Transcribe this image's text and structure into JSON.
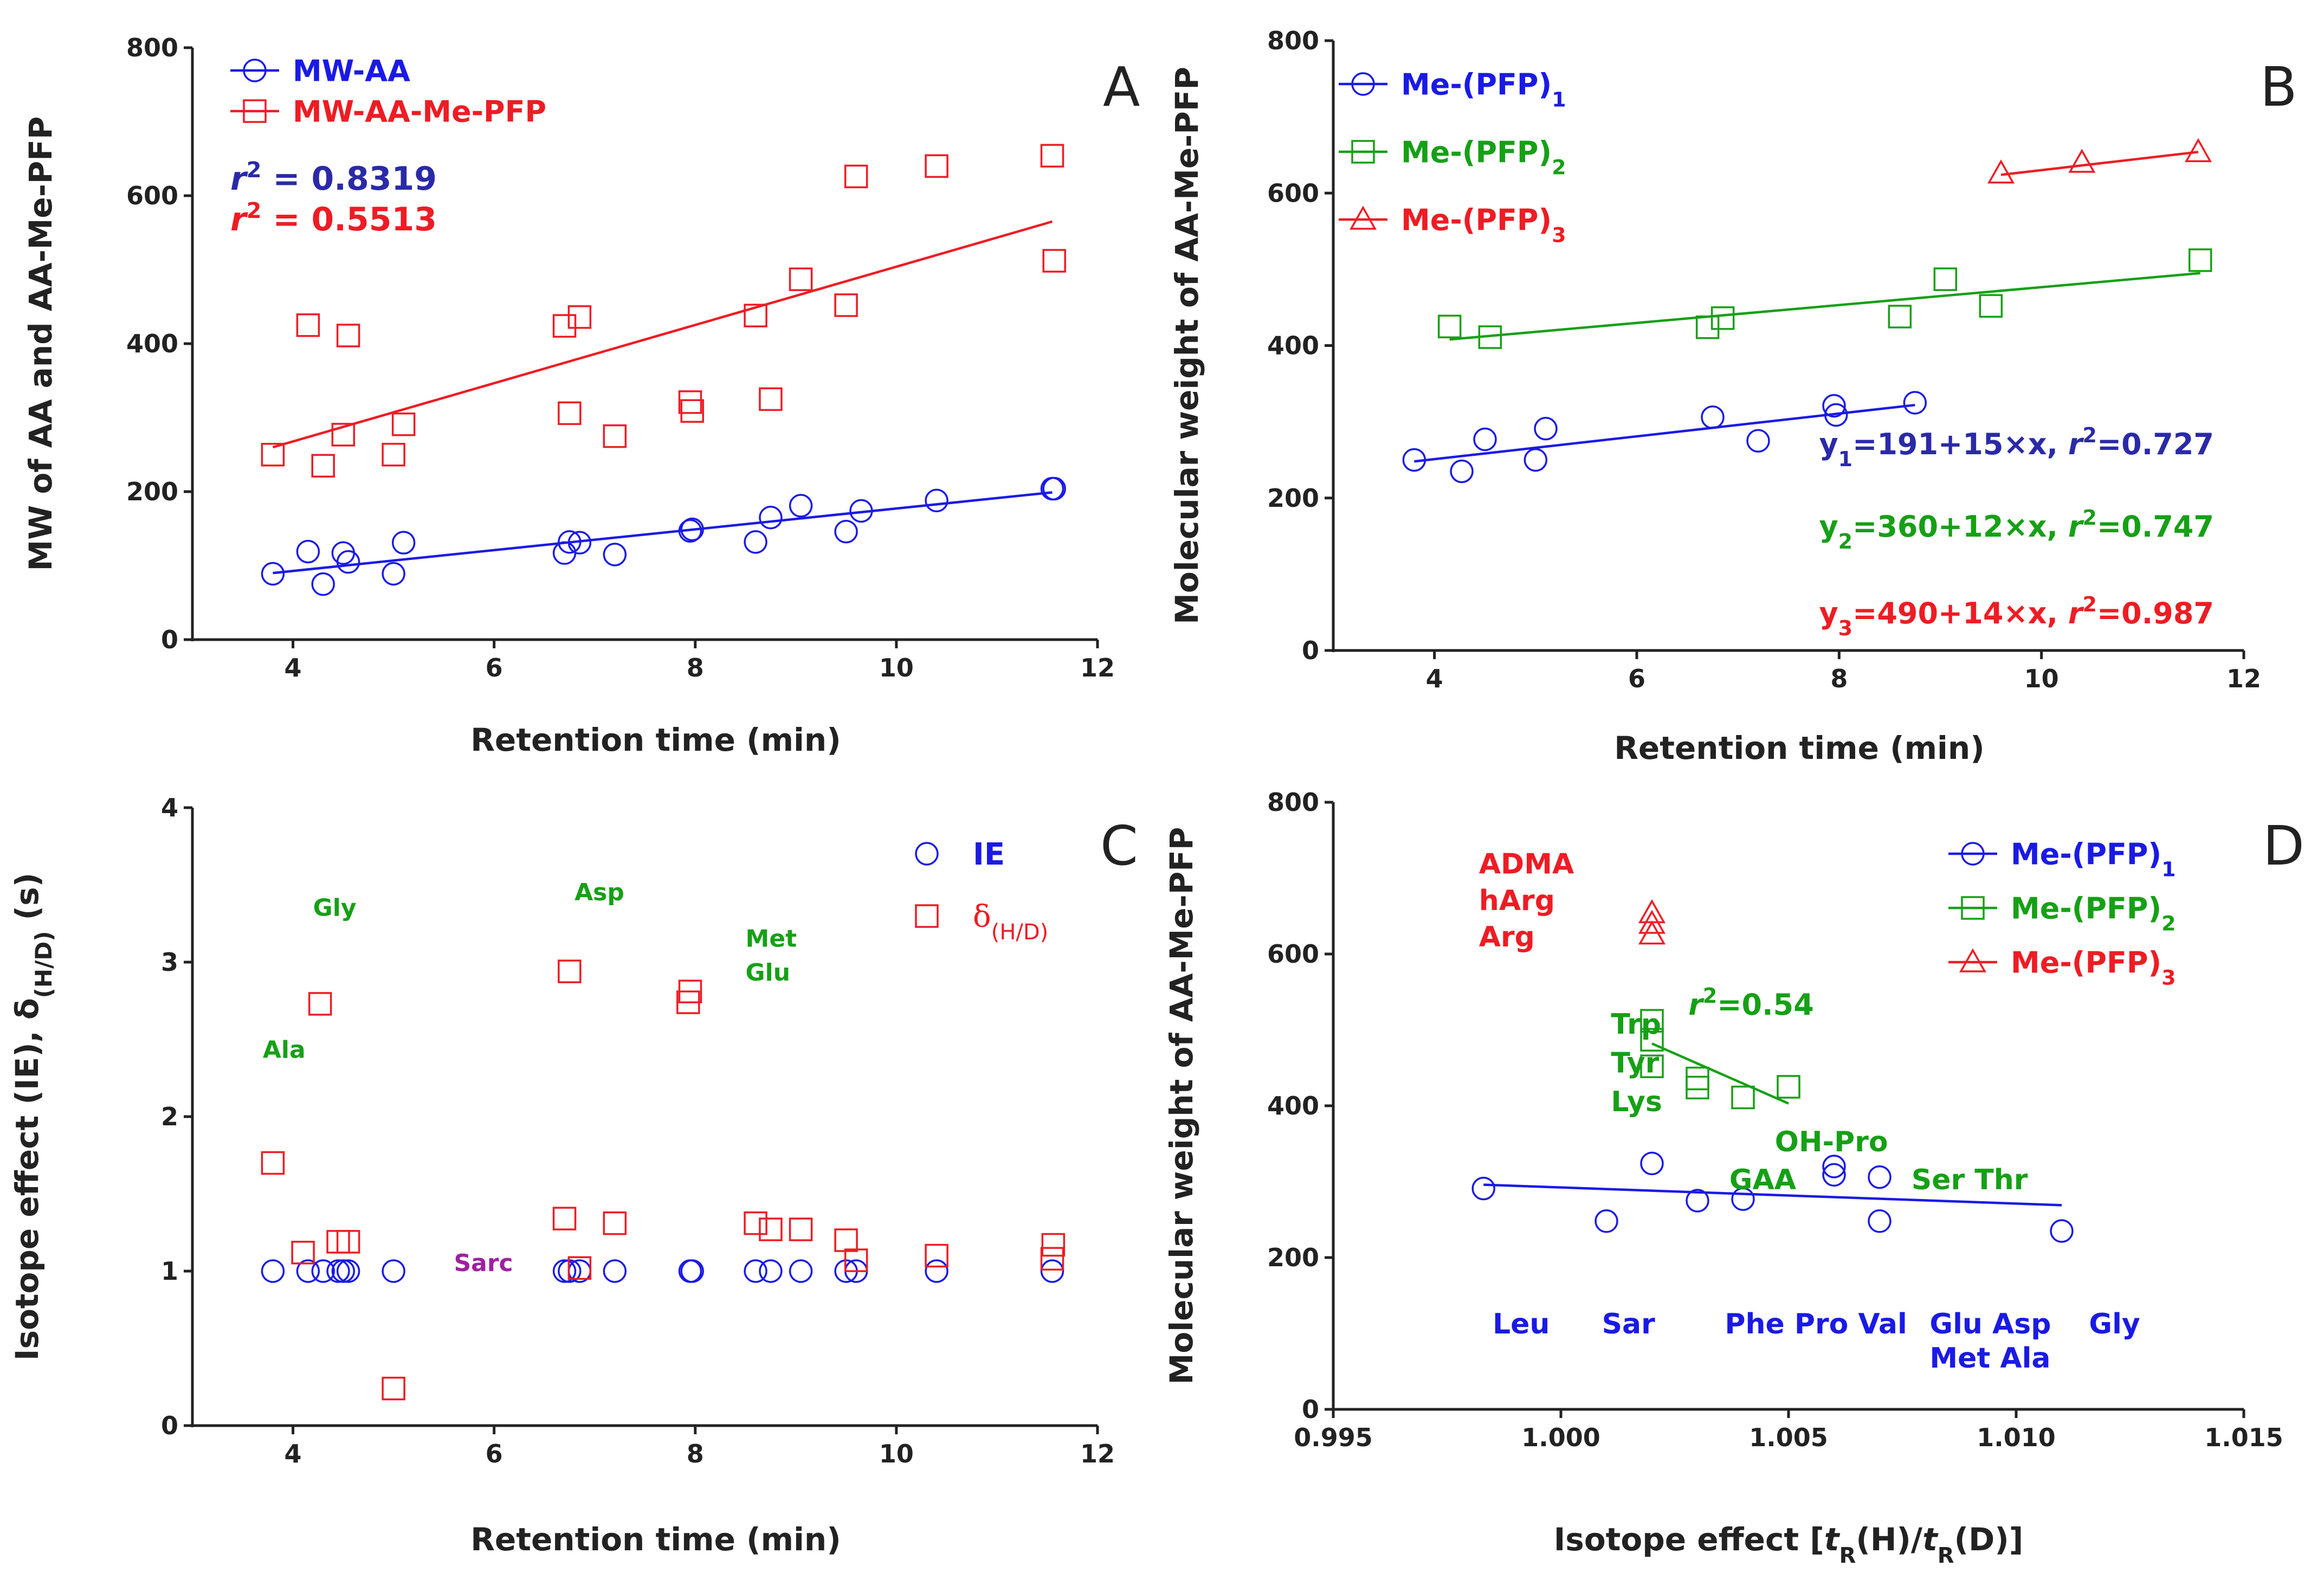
{
  "colors": {
    "blue": "#1a1ae6",
    "red": "#ee1c24",
    "green": "#16a016",
    "purple": "#a020a0",
    "navy": "#2a2aa8",
    "dark": "#222222"
  },
  "chart_data": [
    {
      "panel": "A",
      "type": "scatter",
      "xlabel": "Retention time (min)",
      "ylabel": "MW of AA and AA-Me-PFP",
      "xlim": [
        3,
        12
      ],
      "ylim": [
        0,
        800
      ],
      "xticks": [
        4,
        6,
        8,
        10,
        12
      ],
      "yticks": [
        0,
        200,
        400,
        600,
        800
      ],
      "series": [
        {
          "name": "MW-AA",
          "marker": "circle",
          "color": "#1a1ae6",
          "points": [
            [
              3.8,
              89
            ],
            [
              4.15,
              119
            ],
            [
              4.3,
              75
            ],
            [
              4.5,
              117
            ],
            [
              4.55,
              105
            ],
            [
              5.0,
              89
            ],
            [
              5.1,
              131
            ],
            [
              6.7,
              117
            ],
            [
              6.75,
              132
            ],
            [
              6.85,
              131
            ],
            [
              7.2,
              115
            ],
            [
              7.95,
              147
            ],
            [
              7.97,
              149
            ],
            [
              8.6,
              132
            ],
            [
              8.75,
              165
            ],
            [
              9.05,
              181
            ],
            [
              9.5,
              146
            ],
            [
              9.65,
              174
            ],
            [
              10.4,
              188
            ],
            [
              11.55,
              204
            ],
            [
              11.57,
              204
            ]
          ],
          "fit": [
            [
              3.8,
              90
            ],
            [
              11.55,
              199
            ]
          ]
        },
        {
          "name": "MW-AA-Me-PFP",
          "marker": "square",
          "color": "#ee1c24",
          "points": [
            [
              3.8,
              250
            ],
            [
              4.15,
              425
            ],
            [
              4.3,
              235
            ],
            [
              4.5,
              277
            ],
            [
              4.55,
              411
            ],
            [
              5.0,
              250
            ],
            [
              5.1,
              291
            ],
            [
              6.7,
              424
            ],
            [
              6.75,
              306
            ],
            [
              6.85,
              436
            ],
            [
              7.2,
              275
            ],
            [
              7.95,
              321
            ],
            [
              7.97,
              309
            ],
            [
              8.6,
              438
            ],
            [
              8.75,
              325
            ],
            [
              9.05,
              487
            ],
            [
              9.5,
              452
            ],
            [
              9.6,
              626
            ],
            [
              10.4,
              640
            ],
            [
              11.55,
              654
            ],
            [
              11.57,
              512
            ]
          ],
          "fit": [
            [
              3.8,
              260
            ],
            [
              11.55,
              565
            ]
          ]
        }
      ],
      "annotations": [
        {
          "pre": "r",
          "sup": "2",
          "text": " = 0.8319",
          "color": "#2a2aa8"
        },
        {
          "pre": "r",
          "sup": "2",
          "text": " = 0.5513",
          "color": "#ee1c24"
        }
      ]
    },
    {
      "panel": "B",
      "type": "scatter",
      "xlabel": "Retention time (min)",
      "ylabel": "Molecular weight of AA-Me-PFP",
      "xlim": [
        3,
        12
      ],
      "ylim": [
        0,
        800
      ],
      "xticks": [
        4,
        6,
        8,
        10,
        12
      ],
      "yticks": [
        0,
        200,
        400,
        600,
        800
      ],
      "series": [
        {
          "name": "Me-(PFP)",
          "sub": "1",
          "marker": "circle",
          "color": "#1a1ae6",
          "points": [
            [
              3.8,
              250
            ],
            [
              4.27,
              235
            ],
            [
              4.5,
              277
            ],
            [
              5.0,
              250
            ],
            [
              5.1,
              291
            ],
            [
              6.75,
              306
            ],
            [
              7.2,
              275
            ],
            [
              7.95,
              321
            ],
            [
              7.97,
              309
            ],
            [
              8.75,
              325
            ]
          ],
          "fit": [
            [
              3.8,
              248
            ],
            [
              8.75,
              322
            ]
          ]
        },
        {
          "name": "Me-(PFP)",
          "sub": "2",
          "marker": "square",
          "color": "#16a016",
          "points": [
            [
              4.15,
              425
            ],
            [
              4.55,
              411
            ],
            [
              6.7,
              424
            ],
            [
              6.85,
              436
            ],
            [
              8.6,
              438
            ],
            [
              9.05,
              487
            ],
            [
              9.5,
              452
            ],
            [
              11.57,
              512
            ]
          ],
          "fit": [
            [
              4.15,
              408
            ],
            [
              11.57,
              495
            ]
          ]
        },
        {
          "name": "Me-(PFP)",
          "sub": "3",
          "marker": "triangle",
          "color": "#ee1c24",
          "points": [
            [
              9.6,
              626
            ],
            [
              10.4,
              640
            ],
            [
              11.55,
              654
            ]
          ],
          "fit": [
            [
              9.6,
              624
            ],
            [
              11.55,
              654
            ]
          ]
        }
      ],
      "equations": [
        {
          "pre": "y",
          "sub": "1",
          "mid": "=191+15×x, ",
          "r": "r",
          "sup": "2",
          "post": "=0.727",
          "color": "#2a2aa8"
        },
        {
          "pre": "y",
          "sub": "2",
          "mid": "=360+12×x, ",
          "r": "r",
          "sup": "2",
          "post": "=0.747",
          "color": "#16a016"
        },
        {
          "pre": "y",
          "sub": "3",
          "mid": "=490+14×x, ",
          "r": "r",
          "sup": "2",
          "post": "=0.987",
          "color": "#ee1c24"
        }
      ]
    },
    {
      "panel": "C",
      "type": "scatter",
      "xlabel": "Retention time (min)",
      "ylabel_main": "Isotope effect (IE), δ",
      "ylabel_sub": "(H/D)",
      "ylabel_end": " (s)",
      "xlim": [
        3,
        12
      ],
      "ylim": [
        0,
        4
      ],
      "xticks": [
        4,
        6,
        8,
        10,
        12
      ],
      "yticks": [
        0,
        1,
        2,
        3,
        4
      ],
      "series": [
        {
          "name": "IE",
          "marker": "circle",
          "color": "#1a1ae6",
          "points": [
            [
              3.8,
              1
            ],
            [
              4.15,
              1
            ],
            [
              4.3,
              1
            ],
            [
              4.45,
              1
            ],
            [
              4.5,
              1
            ],
            [
              4.55,
              1
            ],
            [
              5.0,
              1
            ],
            [
              6.7,
              1
            ],
            [
              6.75,
              1
            ],
            [
              6.85,
              1
            ],
            [
              7.2,
              1
            ],
            [
              7.95,
              1
            ],
            [
              7.97,
              1
            ],
            [
              8.6,
              1
            ],
            [
              8.75,
              1
            ],
            [
              9.05,
              1
            ],
            [
              9.5,
              1
            ],
            [
              9.6,
              1
            ],
            [
              10.4,
              1
            ],
            [
              11.55,
              1
            ]
          ]
        },
        {
          "name": "δ",
          "sub": "(H/D)",
          "marker": "square",
          "color": "#ee1c24",
          "points": [
            [
              3.8,
              1.7
            ],
            [
              4.1,
              1.12
            ],
            [
              4.27,
              2.73
            ],
            [
              4.45,
              1.19
            ],
            [
              4.55,
              1.19
            ],
            [
              5.0,
              0.24
            ],
            [
              6.7,
              1.34
            ],
            [
              6.75,
              2.94
            ],
            [
              6.85,
              1.02
            ],
            [
              7.2,
              1.31
            ],
            [
              7.93,
              2.74
            ],
            [
              7.95,
              2.81
            ],
            [
              8.6,
              1.31
            ],
            [
              8.75,
              1.27
            ],
            [
              9.05,
              1.27
            ],
            [
              9.5,
              1.2
            ],
            [
              9.6,
              1.07
            ],
            [
              10.4,
              1.1
            ],
            [
              11.55,
              1.08
            ],
            [
              11.56,
              1.17
            ]
          ]
        }
      ],
      "annotations": [
        {
          "text": "Gly",
          "x": 4.2,
          "y": 3.3,
          "color": "#16a016"
        },
        {
          "text": "Asp",
          "x": 6.8,
          "y": 3.4,
          "color": "#16a016"
        },
        {
          "text": "Met",
          "x": 8.5,
          "y": 3.1,
          "color": "#16a016"
        },
        {
          "text": "Glu",
          "x": 8.5,
          "y": 2.88,
          "color": "#16a016"
        },
        {
          "text": "Ala",
          "x": 3.7,
          "y": 2.38,
          "color": "#16a016"
        },
        {
          "text": "Sarc",
          "x": 5.6,
          "y": 1.0,
          "color": "#a020a0"
        }
      ]
    },
    {
      "panel": "D",
      "type": "scatter",
      "xlabel_pre": "Isotope effect [",
      "xlabel_t": "t",
      "xlabel_R": "R",
      "xlabel_mid": "(H)/",
      "xlabel_end": "(D)]",
      "ylabel": "Molecular weight of AA-Me-PFP",
      "xlim": [
        0.995,
        1.015
      ],
      "ylim": [
        0,
        800
      ],
      "xticks": [
        "0.995",
        "1.000",
        "1.005",
        "1.010",
        "1.015"
      ],
      "yticks": [
        0,
        200,
        400,
        600,
        800
      ],
      "series": [
        {
          "name": "Me-(PFP)",
          "sub": "1",
          "marker": "circle",
          "color": "#1a1ae6",
          "points": [
            [
              0.9983,
              291
            ],
            [
              1.001,
              248
            ],
            [
              1.002,
              324
            ],
            [
              1.003,
              275
            ],
            [
              1.004,
              277
            ],
            [
              1.006,
              309
            ],
            [
              1.006,
              320
            ],
            [
              1.007,
              306
            ],
            [
              1.007,
              248
            ],
            [
              1.011,
              235
            ]
          ],
          "fit": [
            [
              0.9983,
              296
            ],
            [
              1.011,
              269
            ]
          ]
        },
        {
          "name": "Me-(PFP)",
          "sub": "2",
          "marker": "square",
          "color": "#16a016",
          "points": [
            [
              1.002,
              512
            ],
            [
              1.002,
              487
            ],
            [
              1.002,
              452
            ],
            [
              1.003,
              424
            ],
            [
              1.003,
              436
            ],
            [
              1.004,
              411
            ],
            [
              1.005,
              425
            ]
          ],
          "fit": [
            [
              1.002,
              482
            ],
            [
              1.005,
              403
            ]
          ]
        },
        {
          "name": "Me-(PFP)",
          "sub": "3",
          "marker": "triangle",
          "color": "#ee1c24",
          "points": [
            [
              1.002,
              626
            ],
            [
              1.002,
              640
            ],
            [
              1.002,
              654
            ]
          ]
        }
      ],
      "annotations": [
        {
          "text": "ADMA",
          "x": 0.9982,
          "y": 706,
          "color": "#ee1c24"
        },
        {
          "text": "hArg",
          "x": 0.9982,
          "y": 658,
          "color": "#ee1c24"
        },
        {
          "text": "Arg",
          "x": 0.9982,
          "y": 610,
          "color": "#ee1c24"
        },
        {
          "text": "Trp",
          "x": 1.0011,
          "y": 495,
          "color": "#16a016"
        },
        {
          "text": "Tyr",
          "x": 1.0011,
          "y": 444,
          "color": "#16a016"
        },
        {
          "text": "Lys",
          "x": 1.0011,
          "y": 393,
          "color": "#16a016"
        },
        {
          "text": "OH-Pro",
          "x": 1.0047,
          "y": 340,
          "color": "#16a016"
        },
        {
          "text": "GAA",
          "x": 1.0037,
          "y": 290,
          "color": "#16a016"
        },
        {
          "text": "Ser Thr",
          "x": 1.0077,
          "y": 290,
          "color": "#16a016"
        },
        {
          "text": "Leu",
          "x": 0.9985,
          "y": 100,
          "color": "#1a1ae6"
        },
        {
          "text": "Sar",
          "x": 1.0009,
          "y": 100,
          "color": "#1a1ae6"
        },
        {
          "text": "Phe Pro Val",
          "x": 1.0036,
          "y": 100,
          "color": "#1a1ae6"
        },
        {
          "text": "Glu Asp",
          "x": 1.0081,
          "y": 100,
          "color": "#1a1ae6"
        },
        {
          "text": "Met Ala",
          "x": 1.0081,
          "y": 55,
          "color": "#1a1ae6"
        },
        {
          "text": "Gly",
          "x": 1.0116,
          "y": 100,
          "color": "#1a1ae6"
        }
      ],
      "r2": {
        "pre": "r",
        "sup": "2",
        "text": "=0.54",
        "color": "#16a016"
      }
    }
  ]
}
